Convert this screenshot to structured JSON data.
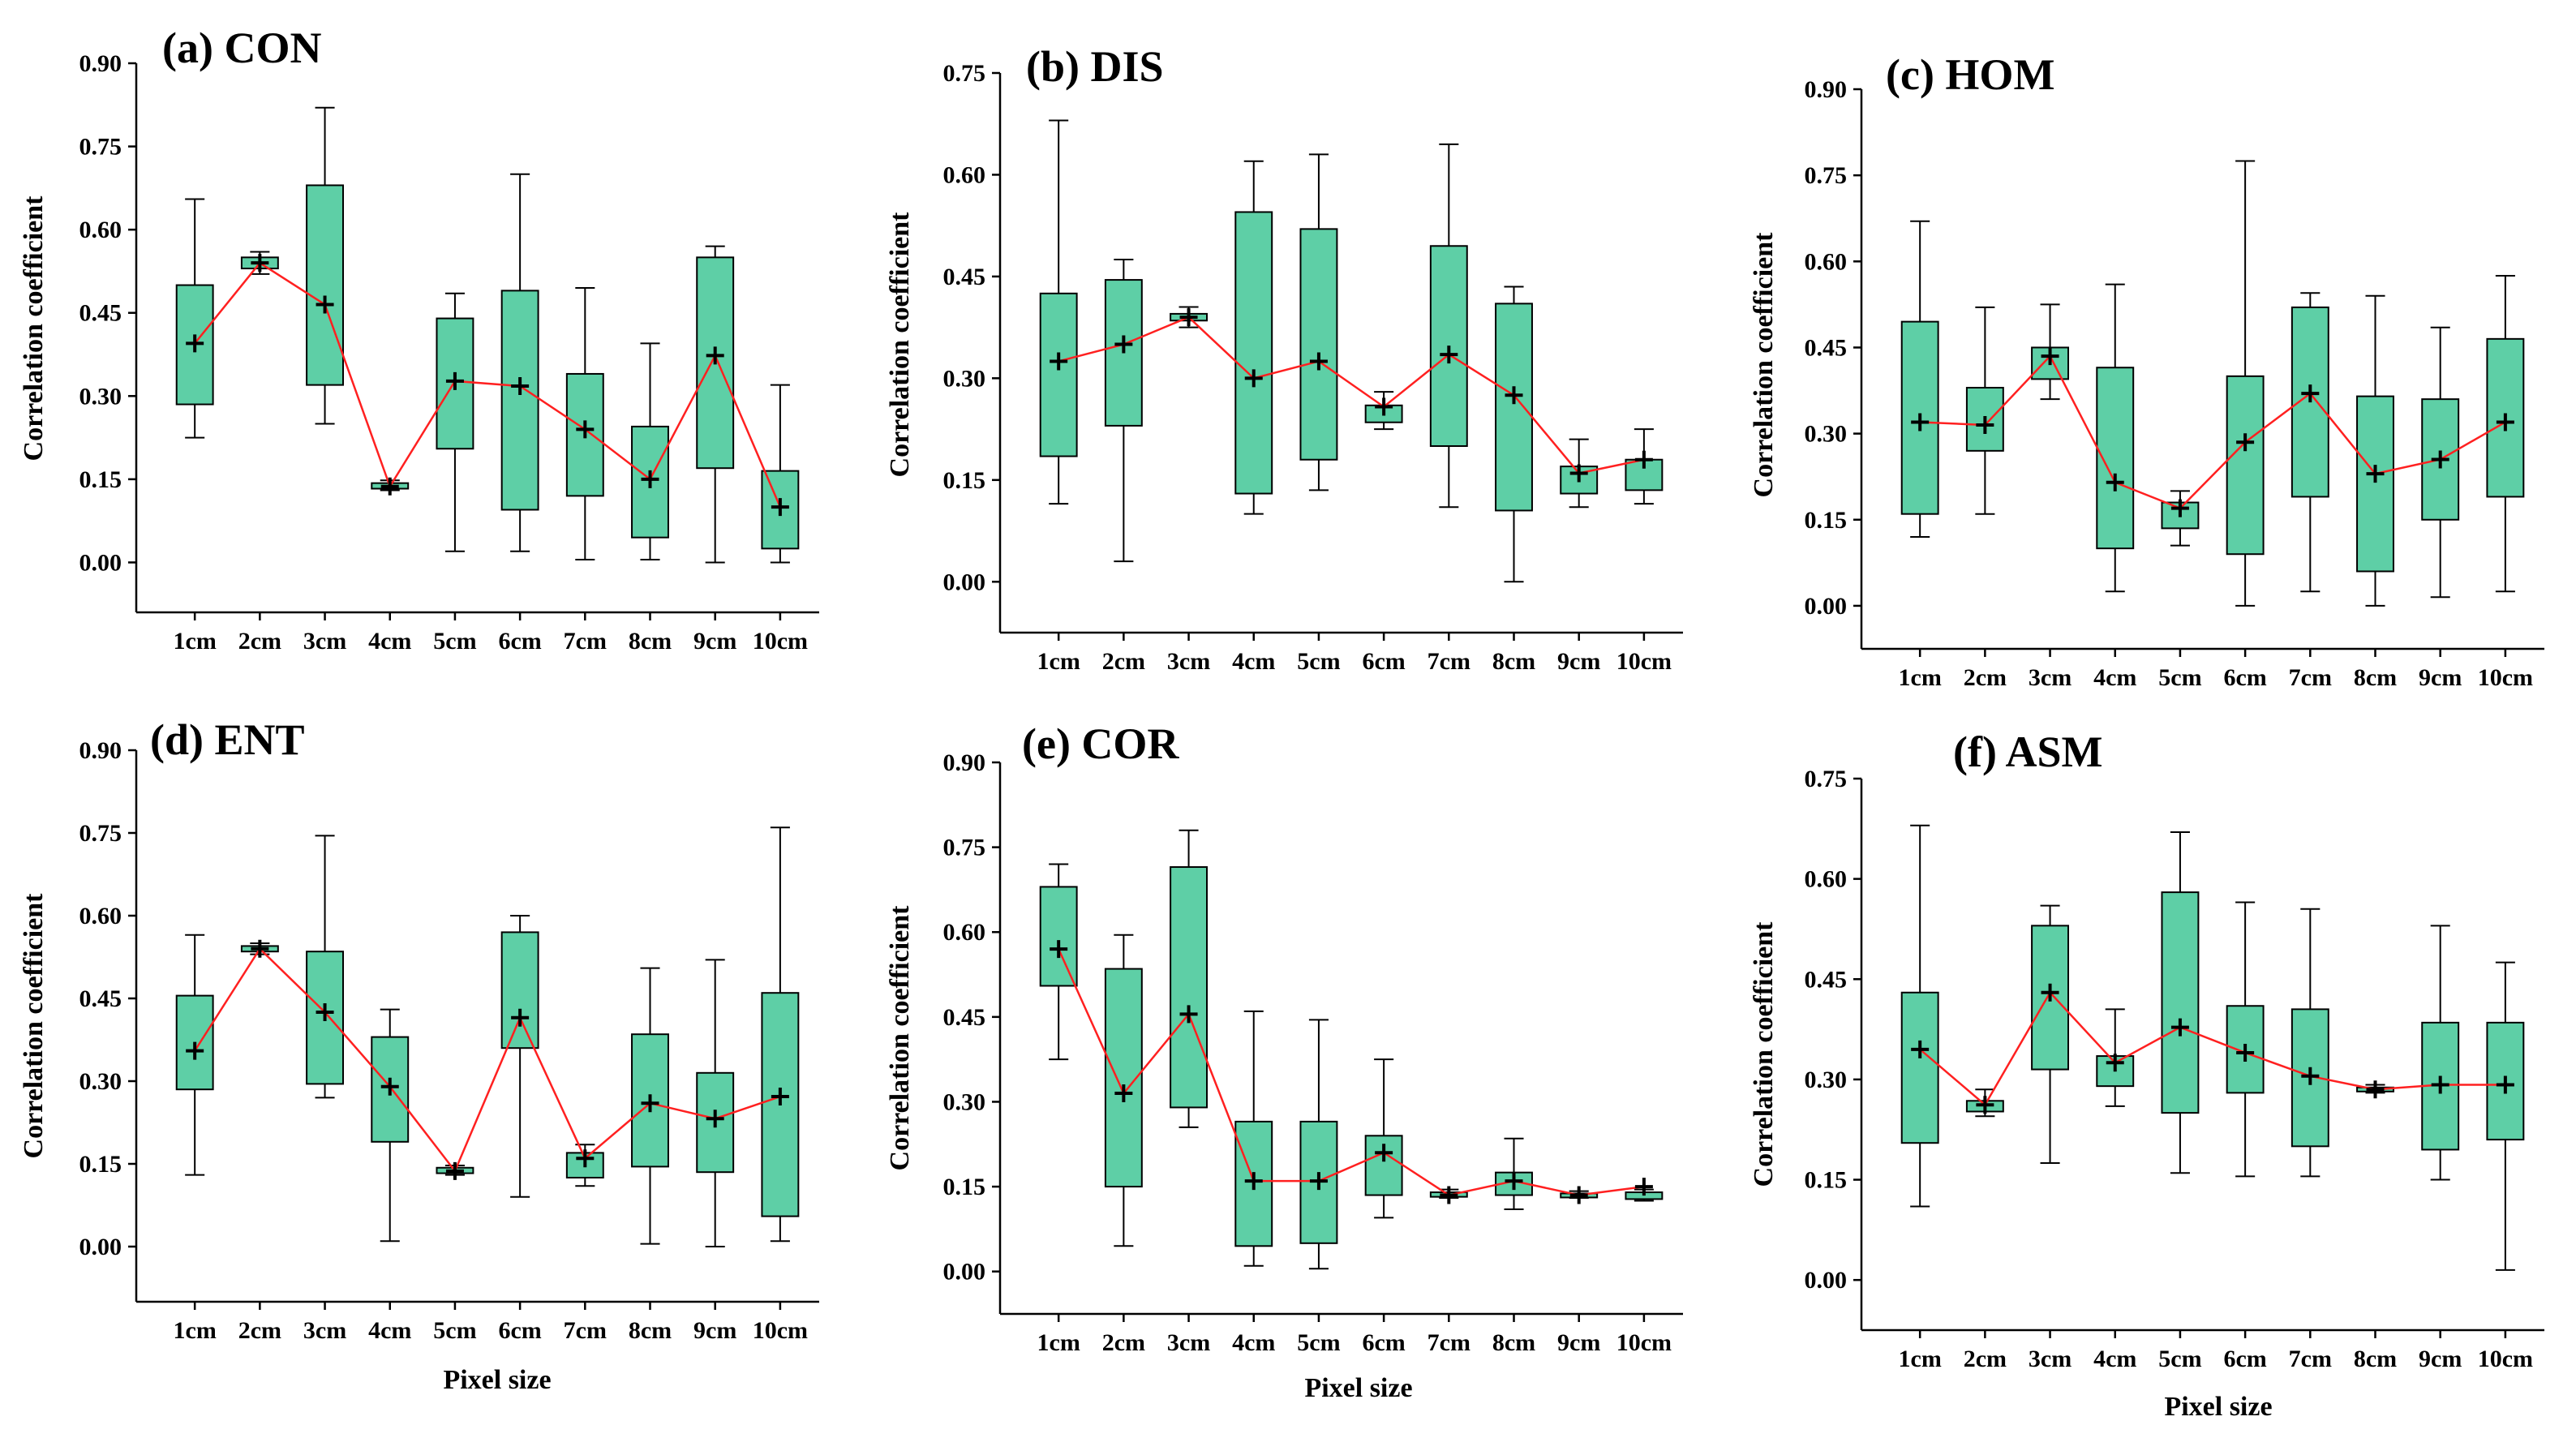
{
  "figure": {
    "box_fill": "#5ecfa6",
    "mean_line_color": "#ff2020",
    "stroke_color": "#000000"
  },
  "chart_data": [
    {
      "type": "box",
      "title": "(a) CON",
      "xlabel": "",
      "ylabel": "Correlation coefficient",
      "ylim": [
        -0.09,
        0.9
      ],
      "yticks": [
        "0.00",
        "0.15",
        "0.30",
        "0.45",
        "0.60",
        "0.75",
        "0.90"
      ],
      "categories": [
        "1cm",
        "2cm",
        "3cm",
        "4cm",
        "5cm",
        "6cm",
        "7cm",
        "8cm",
        "9cm",
        "10cm"
      ],
      "boxes": [
        {
          "min": 0.225,
          "q1": 0.285,
          "q3": 0.5,
          "max": 0.655,
          "mean": 0.395
        },
        {
          "min": 0.52,
          "q1": 0.53,
          "q3": 0.55,
          "max": 0.56,
          "mean": 0.54
        },
        {
          "min": 0.25,
          "q1": 0.32,
          "q3": 0.68,
          "max": 0.82,
          "mean": 0.465
        },
        {
          "min": 0.13,
          "q1": 0.133,
          "q3": 0.143,
          "max": 0.148,
          "mean": 0.137
        },
        {
          "min": 0.02,
          "q1": 0.205,
          "q3": 0.44,
          "max": 0.485,
          "mean": 0.327
        },
        {
          "min": 0.02,
          "q1": 0.095,
          "q3": 0.49,
          "max": 0.7,
          "mean": 0.318
        },
        {
          "min": 0.005,
          "q1": 0.12,
          "q3": 0.34,
          "max": 0.495,
          "mean": 0.24
        },
        {
          "min": 0.005,
          "q1": 0.045,
          "q3": 0.245,
          "max": 0.395,
          "mean": 0.15
        },
        {
          "min": 0.0,
          "q1": 0.17,
          "q3": 0.55,
          "max": 0.57,
          "mean": 0.373
        },
        {
          "min": 0.0,
          "q1": 0.025,
          "q3": 0.165,
          "max": 0.32,
          "mean": 0.1
        }
      ]
    },
    {
      "type": "box",
      "title": "(b) DIS",
      "xlabel": "",
      "ylabel": "Correlation coefficient",
      "ylim": [
        -0.075,
        0.75
      ],
      "yticks": [
        "0.00",
        "0.15",
        "0.30",
        "0.45",
        "0.60",
        "0.75"
      ],
      "categories": [
        "1cm",
        "2cm",
        "3cm",
        "4cm",
        "5cm",
        "6cm",
        "7cm",
        "8cm",
        "9cm",
        "10cm"
      ],
      "boxes": [
        {
          "min": 0.115,
          "q1": 0.185,
          "q3": 0.425,
          "max": 0.68,
          "mean": 0.325
        },
        {
          "min": 0.03,
          "q1": 0.23,
          "q3": 0.445,
          "max": 0.475,
          "mean": 0.35
        },
        {
          "min": 0.375,
          "q1": 0.385,
          "q3": 0.395,
          "max": 0.405,
          "mean": 0.39
        },
        {
          "min": 0.1,
          "q1": 0.13,
          "q3": 0.545,
          "max": 0.62,
          "mean": 0.3
        },
        {
          "min": 0.135,
          "q1": 0.18,
          "q3": 0.52,
          "max": 0.63,
          "mean": 0.325
        },
        {
          "min": 0.225,
          "q1": 0.235,
          "q3": 0.26,
          "max": 0.28,
          "mean": 0.258
        },
        {
          "min": 0.11,
          "q1": 0.2,
          "q3": 0.495,
          "max": 0.645,
          "mean": 0.335
        },
        {
          "min": 0.0,
          "q1": 0.105,
          "q3": 0.41,
          "max": 0.435,
          "mean": 0.275
        },
        {
          "min": 0.11,
          "q1": 0.13,
          "q3": 0.17,
          "max": 0.21,
          "mean": 0.16
        },
        {
          "min": 0.115,
          "q1": 0.135,
          "q3": 0.18,
          "max": 0.225,
          "mean": 0.18
        }
      ]
    },
    {
      "type": "box",
      "title": "(c) HOM",
      "xlabel": "",
      "ylabel": "Correlation coefficient",
      "ylim": [
        -0.075,
        0.9
      ],
      "yticks": [
        "0.00",
        "0.15",
        "0.30",
        "0.45",
        "0.60",
        "0.75",
        "0.90"
      ],
      "categories": [
        "1cm",
        "2cm",
        "3cm",
        "4cm",
        "5cm",
        "6cm",
        "7cm",
        "8cm",
        "9cm",
        "10cm"
      ],
      "boxes": [
        {
          "min": 0.12,
          "q1": 0.16,
          "q3": 0.495,
          "max": 0.67,
          "mean": 0.32
        },
        {
          "min": 0.16,
          "q1": 0.27,
          "q3": 0.38,
          "max": 0.52,
          "mean": 0.315
        },
        {
          "min": 0.36,
          "q1": 0.395,
          "q3": 0.45,
          "max": 0.525,
          "mean": 0.435
        },
        {
          "min": 0.025,
          "q1": 0.1,
          "q3": 0.415,
          "max": 0.56,
          "mean": 0.215
        },
        {
          "min": 0.105,
          "q1": 0.135,
          "q3": 0.18,
          "max": 0.2,
          "mean": 0.17
        },
        {
          "min": 0.0,
          "q1": 0.09,
          "q3": 0.4,
          "max": 0.775,
          "mean": 0.285
        },
        {
          "min": 0.025,
          "q1": 0.19,
          "q3": 0.52,
          "max": 0.545,
          "mean": 0.37
        },
        {
          "min": 0.0,
          "q1": 0.06,
          "q3": 0.365,
          "max": 0.54,
          "mean": 0.23
        },
        {
          "min": 0.015,
          "q1": 0.15,
          "q3": 0.36,
          "max": 0.485,
          "mean": 0.255
        },
        {
          "min": 0.025,
          "q1": 0.19,
          "q3": 0.465,
          "max": 0.575,
          "mean": 0.32
        }
      ]
    },
    {
      "type": "box",
      "title": "(d) ENT",
      "xlabel": "Pixel size",
      "ylabel": "Correlation coefficient",
      "ylim": [
        -0.1,
        0.9
      ],
      "yticks": [
        "0.00",
        "0.15",
        "0.30",
        "0.45",
        "0.60",
        "0.75",
        "0.90"
      ],
      "categories": [
        "1cm",
        "2cm",
        "3cm",
        "4cm",
        "5cm",
        "6cm",
        "7cm",
        "8cm",
        "9cm",
        "10cm"
      ],
      "boxes": [
        {
          "min": 0.13,
          "q1": 0.285,
          "q3": 0.455,
          "max": 0.565,
          "mean": 0.355
        },
        {
          "min": 0.53,
          "q1": 0.535,
          "q3": 0.545,
          "max": 0.55,
          "mean": 0.54
        },
        {
          "min": 0.27,
          "q1": 0.295,
          "q3": 0.535,
          "max": 0.745,
          "mean": 0.425
        },
        {
          "min": 0.01,
          "q1": 0.19,
          "q3": 0.38,
          "max": 0.43,
          "mean": 0.29
        },
        {
          "min": 0.13,
          "q1": 0.133,
          "q3": 0.143,
          "max": 0.147,
          "mean": 0.137
        },
        {
          "min": 0.09,
          "q1": 0.36,
          "q3": 0.57,
          "max": 0.6,
          "mean": 0.415
        },
        {
          "min": 0.11,
          "q1": 0.125,
          "q3": 0.17,
          "max": 0.185,
          "mean": 0.16
        },
        {
          "min": 0.005,
          "q1": 0.145,
          "q3": 0.385,
          "max": 0.505,
          "mean": 0.26
        },
        {
          "min": 0.0,
          "q1": 0.135,
          "q3": 0.315,
          "max": 0.52,
          "mean": 0.232
        },
        {
          "min": 0.01,
          "q1": 0.055,
          "q3": 0.46,
          "max": 0.76,
          "mean": 0.272
        }
      ]
    },
    {
      "type": "box",
      "title": "(e) COR",
      "xlabel": "Pixel size",
      "ylabel": "Correlation coefficient",
      "ylim": [
        -0.075,
        0.9
      ],
      "yticks": [
        "0.00",
        "0.15",
        "0.30",
        "0.45",
        "0.60",
        "0.75",
        "0.90"
      ],
      "categories": [
        "1cm",
        "2cm",
        "3cm",
        "4cm",
        "5cm",
        "6cm",
        "7cm",
        "8cm",
        "9cm",
        "10cm"
      ],
      "boxes": [
        {
          "min": 0.375,
          "q1": 0.505,
          "q3": 0.68,
          "max": 0.72,
          "mean": 0.57
        },
        {
          "min": 0.045,
          "q1": 0.15,
          "q3": 0.535,
          "max": 0.595,
          "mean": 0.315
        },
        {
          "min": 0.255,
          "q1": 0.29,
          "q3": 0.715,
          "max": 0.78,
          "mean": 0.455
        },
        {
          "min": 0.01,
          "q1": 0.045,
          "q3": 0.265,
          "max": 0.46,
          "mean": 0.16
        },
        {
          "min": 0.005,
          "q1": 0.05,
          "q3": 0.265,
          "max": 0.445,
          "mean": 0.16
        },
        {
          "min": 0.095,
          "q1": 0.135,
          "q3": 0.24,
          "max": 0.375,
          "mean": 0.21
        },
        {
          "min": 0.13,
          "q1": 0.132,
          "q3": 0.14,
          "max": 0.145,
          "mean": 0.135
        },
        {
          "min": 0.11,
          "q1": 0.135,
          "q3": 0.175,
          "max": 0.235,
          "mean": 0.16
        },
        {
          "min": 0.13,
          "q1": 0.132,
          "q3": 0.138,
          "max": 0.142,
          "mean": 0.135
        },
        {
          "min": 0.125,
          "q1": 0.128,
          "q3": 0.14,
          "max": 0.145,
          "mean": 0.15
        }
      ]
    },
    {
      "type": "box",
      "title": "(f) ASM",
      "xlabel": "Pixel size",
      "ylabel": "Correlation coefficient",
      "ylim": [
        -0.075,
        0.75
      ],
      "yticks": [
        "0.00",
        "0.15",
        "0.30",
        "0.45",
        "0.60",
        "0.75"
      ],
      "categories": [
        "1cm",
        "2cm",
        "3cm",
        "4cm",
        "5cm",
        "6cm",
        "7cm",
        "8cm",
        "9cm",
        "10cm"
      ],
      "boxes": [
        {
          "min": 0.11,
          "q1": 0.205,
          "q3": 0.43,
          "max": 0.68,
          "mean": 0.345
        },
        {
          "min": 0.245,
          "q1": 0.252,
          "q3": 0.268,
          "max": 0.285,
          "mean": 0.262
        },
        {
          "min": 0.175,
          "q1": 0.315,
          "q3": 0.53,
          "max": 0.56,
          "mean": 0.43
        },
        {
          "min": 0.26,
          "q1": 0.29,
          "q3": 0.335,
          "max": 0.405,
          "mean": 0.325
        },
        {
          "min": 0.16,
          "q1": 0.25,
          "q3": 0.58,
          "max": 0.67,
          "mean": 0.378
        },
        {
          "min": 0.155,
          "q1": 0.28,
          "q3": 0.41,
          "max": 0.565,
          "mean": 0.34
        },
        {
          "min": 0.155,
          "q1": 0.2,
          "q3": 0.405,
          "max": 0.555,
          "mean": 0.305
        },
        {
          "min": 0.28,
          "q1": 0.282,
          "q3": 0.288,
          "max": 0.292,
          "mean": 0.285
        },
        {
          "min": 0.15,
          "q1": 0.195,
          "q3": 0.385,
          "max": 0.53,
          "mean": 0.292
        },
        {
          "min": 0.015,
          "q1": 0.21,
          "q3": 0.385,
          "max": 0.475,
          "mean": 0.292
        }
      ]
    }
  ]
}
